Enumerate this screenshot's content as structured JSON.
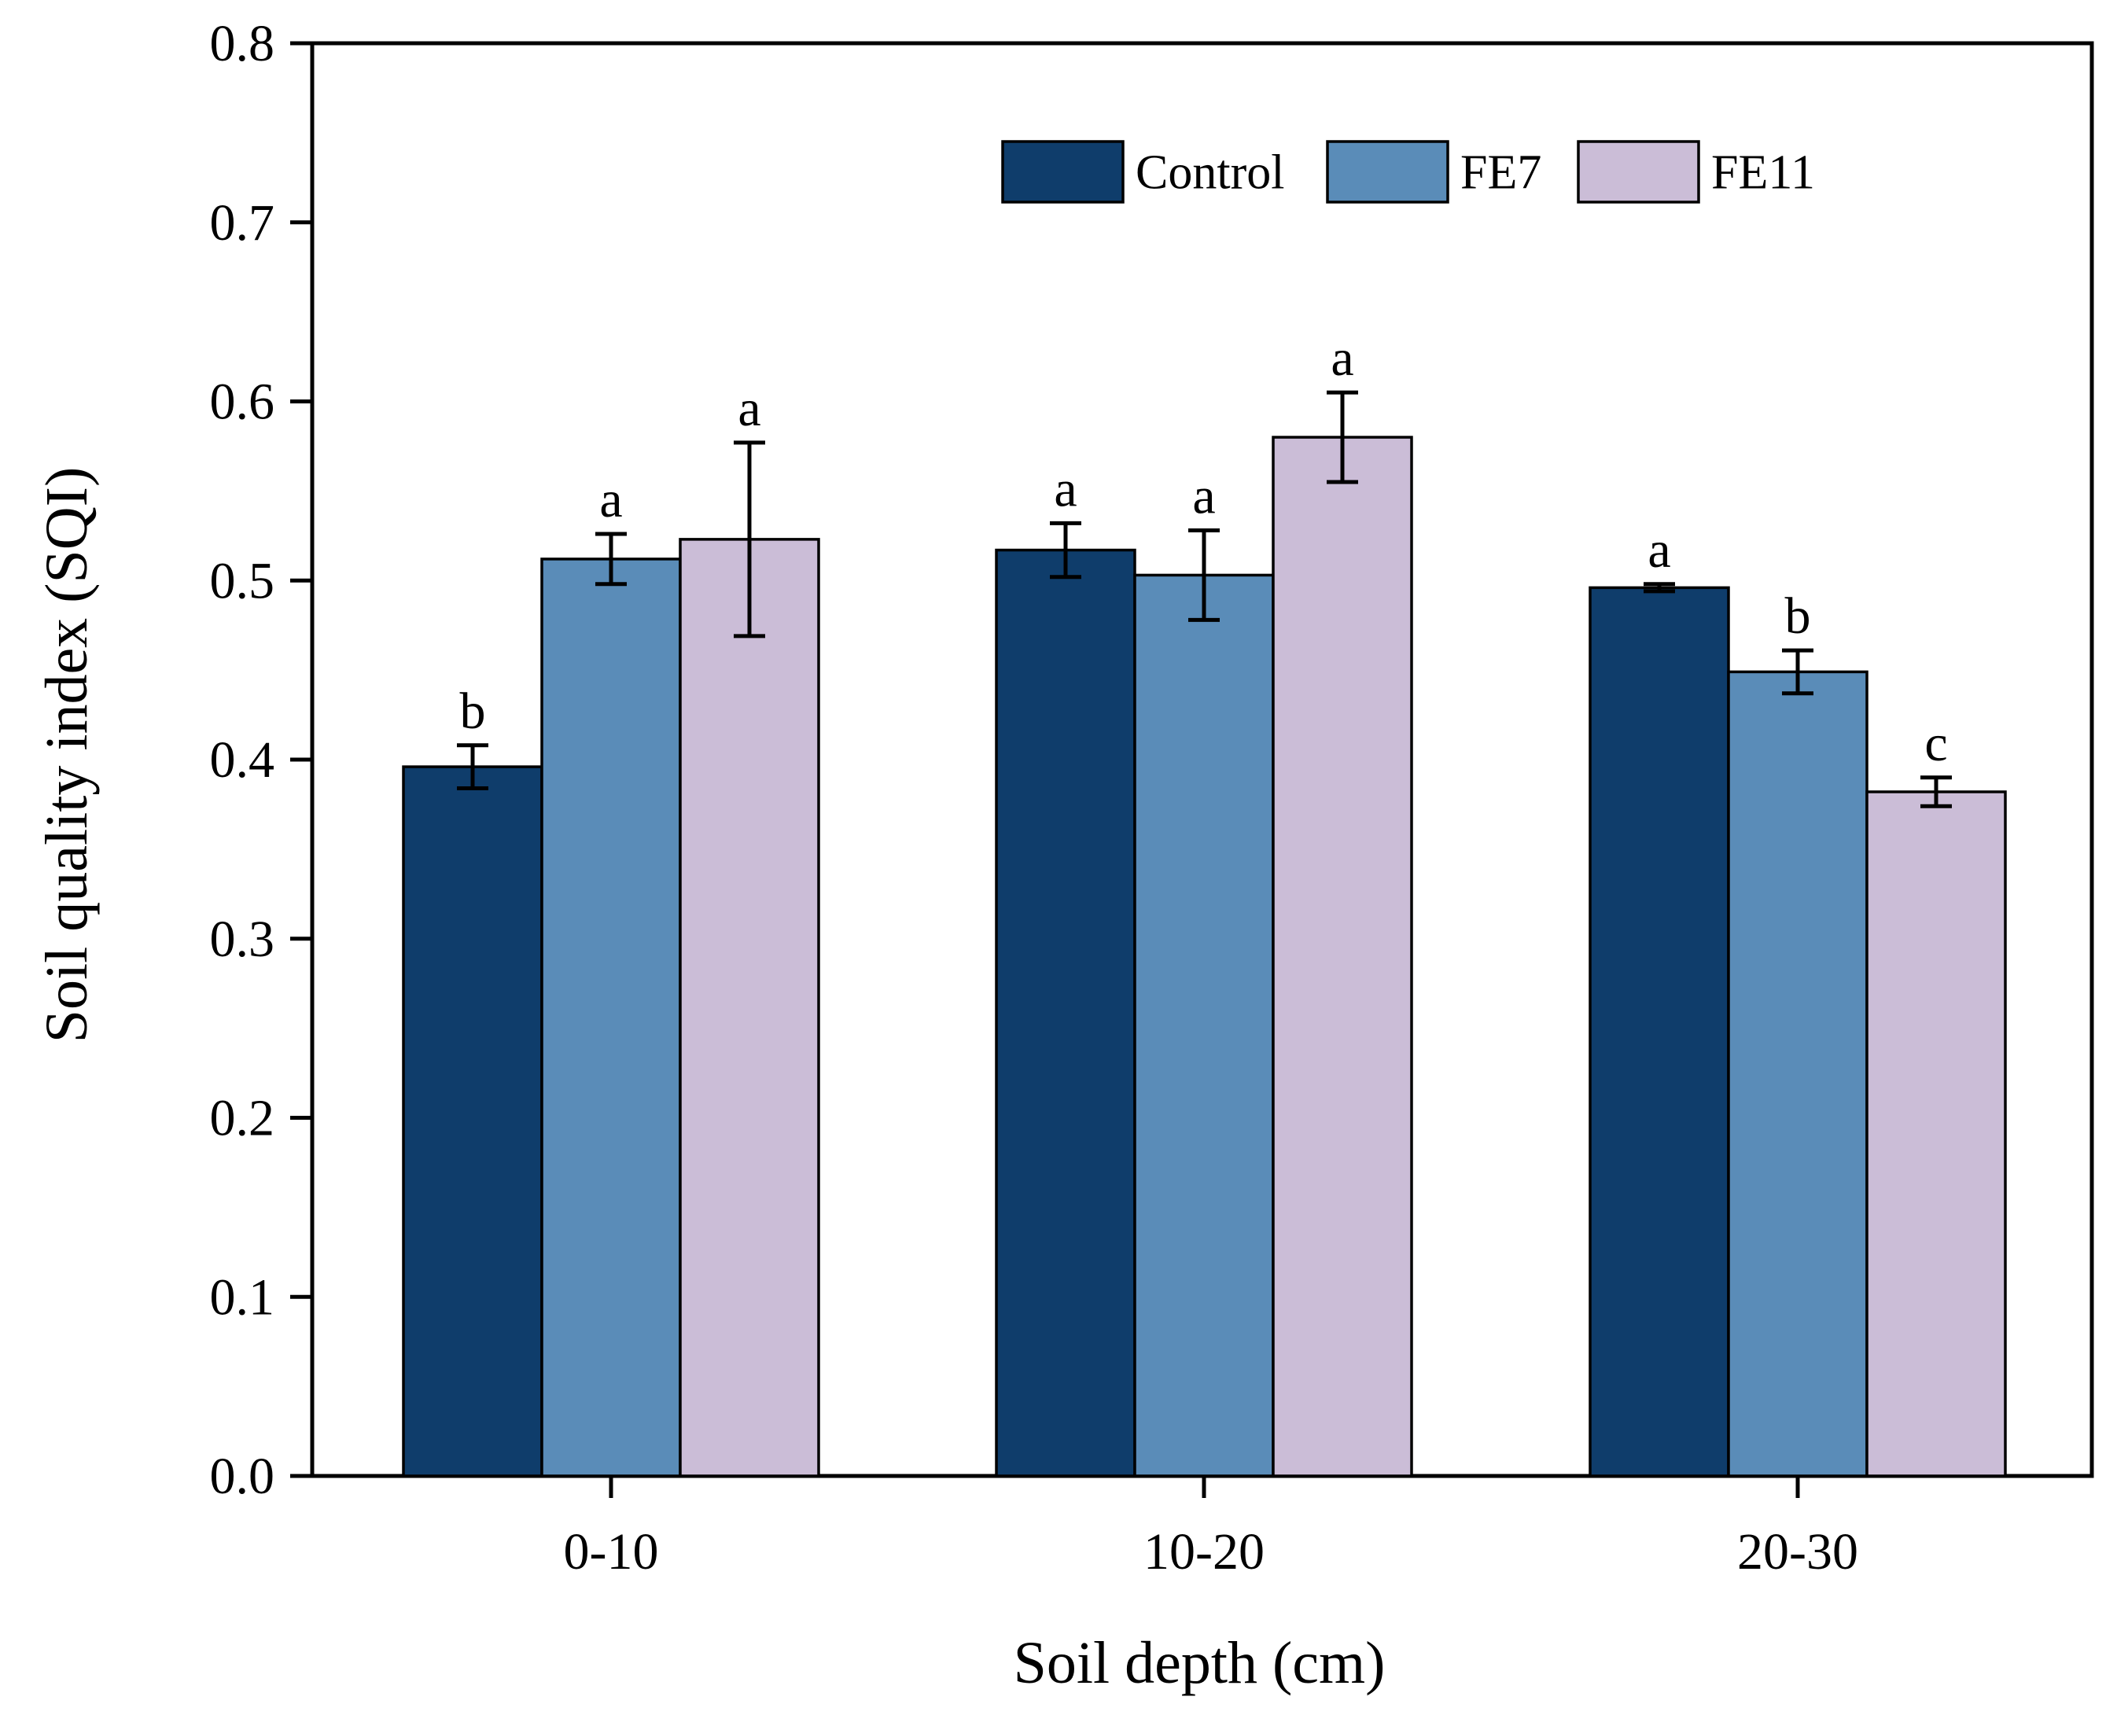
{
  "chart_data": {
    "type": "bar",
    "title": "",
    "xlabel": "Soil depth (cm)",
    "ylabel": "Soil quality index (SQI)",
    "ylim": [
      0,
      0.8
    ],
    "yticks": [
      "0.0",
      "0.1",
      "0.2",
      "0.3",
      "0.4",
      "0.5",
      "0.6",
      "0.7",
      "0.8"
    ],
    "categories": [
      "0-10",
      "10-20",
      "20-30"
    ],
    "series": [
      {
        "name": "Control",
        "color": "#0f3d6b",
        "values": [
          0.396,
          0.517,
          0.496
        ],
        "errors": [
          0.012,
          0.015,
          0.002
        ],
        "labels": [
          "b",
          "a",
          "a"
        ]
      },
      {
        "name": "FE7",
        "color": "#5a8cb8",
        "values": [
          0.512,
          0.503,
          0.449
        ],
        "errors": [
          0.014,
          0.025,
          0.012
        ],
        "labels": [
          "a",
          "a",
          "b"
        ]
      },
      {
        "name": "FE11",
        "color": "#cbbdd7",
        "values": [
          0.523,
          0.58,
          0.382
        ],
        "errors": [
          0.054,
          0.025,
          0.008
        ],
        "labels": [
          "a",
          "a",
          "c"
        ]
      }
    ],
    "legend_position": "top-right",
    "grid": false
  }
}
